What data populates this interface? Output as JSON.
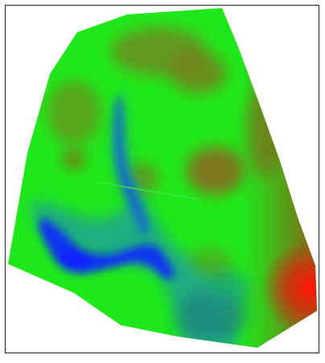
{
  "map": {
    "kind": "elevation-raster",
    "colormap": [
      "#0022ff",
      "#1aa0a0",
      "#00ff33",
      "#7a6a20",
      "#ff0000"
    ],
    "colors": {
      "frame_border": "#222222",
      "background": "#ffffff"
    }
  }
}
